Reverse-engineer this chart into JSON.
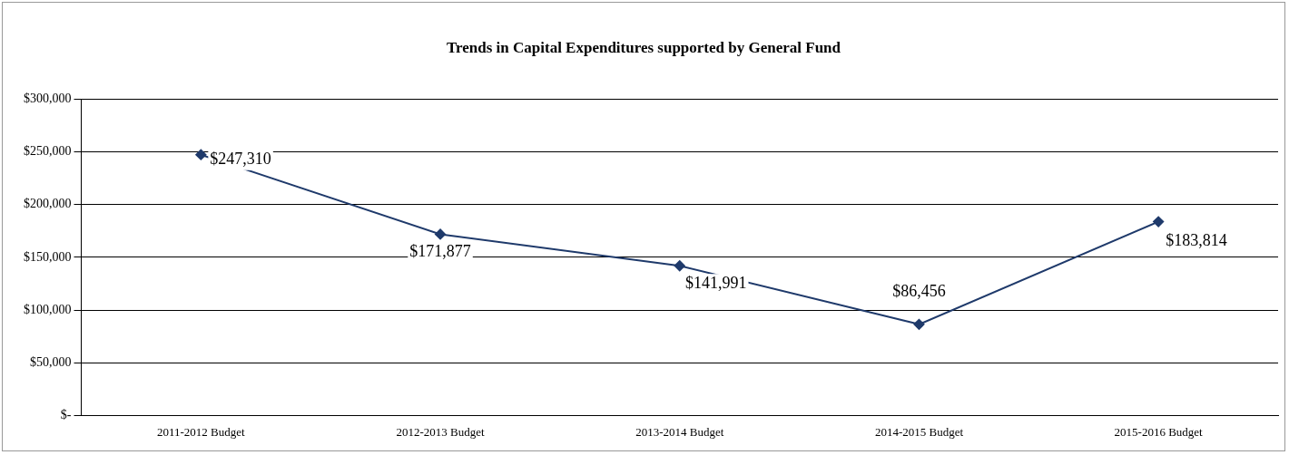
{
  "chart_data": {
    "type": "line",
    "title": "Trends in Capital Expenditures supported by General Fund",
    "categories": [
      "2011-2012 Budget",
      "2012-2013 Budget",
      "2013-2014 Budget",
      "2014-2015 Budget",
      "2015-2016 Budget"
    ],
    "series": [
      {
        "color": "#1f3a6b",
        "values": [
          247310,
          171877,
          141991,
          86456,
          183814
        ],
        "value_labels": [
          "$247,310",
          "$171,877",
          "$141,991",
          "$86,456",
          "$183,814"
        ]
      }
    ],
    "ylim": [
      0,
      300000
    ],
    "yticks": [
      {
        "value": 0,
        "label": "$-"
      },
      {
        "value": 50000,
        "label": "$50,000"
      },
      {
        "value": 100000,
        "label": "$100,000"
      },
      {
        "value": 150000,
        "label": "$150,000"
      },
      {
        "value": 200000,
        "label": "$200,000"
      },
      {
        "value": 250000,
        "label": "$250,000"
      },
      {
        "value": 300000,
        "label": "$300,000"
      }
    ],
    "grid": "y",
    "legend": false,
    "marker": "diamond",
    "line_style": "solid"
  }
}
